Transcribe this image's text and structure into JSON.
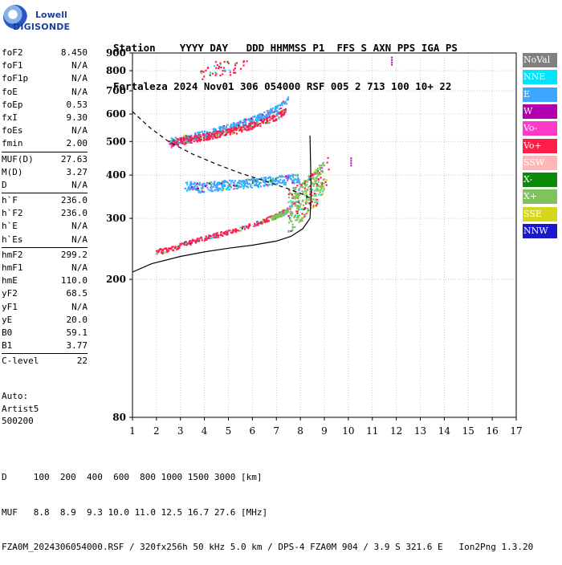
{
  "logo": {
    "line1": "Lowell",
    "line2": "DIGISONDE"
  },
  "header": {
    "line1": "Station    YYYY DAY   DDD HHMMSS P1  FFS S AXN PPS IGA PS",
    "line2": "Fortaleza 2024 Nov01 306 054000 RSF 005 2 713 100 10+ 22"
  },
  "params": [
    [
      {
        "label": "foF2",
        "value": "8.450"
      },
      {
        "label": "foF1",
        "value": "N/A"
      },
      {
        "label": "foF1p",
        "value": "N/A"
      },
      {
        "label": "foE",
        "value": "N/A"
      },
      {
        "label": "foEp",
        "value": "0.53"
      },
      {
        "label": "fxI",
        "value": "9.30"
      },
      {
        "label": "foEs",
        "value": "N/A"
      },
      {
        "label": "fmin",
        "value": "2.00"
      }
    ],
    [
      {
        "label": "MUF(D)",
        "value": "27.63"
      },
      {
        "label": "M(D)",
        "value": "3.27"
      },
      {
        "label": "D",
        "value": "N/A"
      }
    ],
    [
      {
        "label": "h`F",
        "value": "236.0"
      },
      {
        "label": "h`F2",
        "value": "236.0"
      },
      {
        "label": "h`E",
        "value": "N/A"
      },
      {
        "label": "h`Es",
        "value": "N/A"
      }
    ],
    [
      {
        "label": "hmF2",
        "value": "299.2"
      },
      {
        "label": "hmF1",
        "value": "N/A"
      },
      {
        "label": "hmE",
        "value": "110.0"
      },
      {
        "label": "yF2",
        "value": "68.5"
      },
      {
        "label": "yF1",
        "value": "N/A"
      },
      {
        "label": "yE",
        "value": "20.0"
      },
      {
        "label": "B0",
        "value": "59.1"
      },
      {
        "label": "B1",
        "value": "3.77"
      }
    ],
    [
      {
        "label": "C-level",
        "value": "22"
      }
    ]
  ],
  "auto": {
    "line1": "Auto:",
    "line2": "Artist5",
    "line3": "500200"
  },
  "footer": {
    "line1": "D     100  200  400  600  800 1000 1500 3000 [km]",
    "line2": "MUF   8.8  8.9  9.3 10.0 11.0 12.5 16.7 27.6 [MHz]",
    "line3": "FZA0M_2024306054000.RSF / 320fx256h 50 kHz 5.0 km / DPS-4 FZA0M 904 / 3.9 S 321.6 E   Ion2Png 1.3.20"
  },
  "legend": [
    {
      "label": "NoVal",
      "color": "#808080"
    },
    {
      "label": "NNE",
      "color": "#00e5ff"
    },
    {
      "label": "E",
      "color": "#3ea6ff"
    },
    {
      "label": "W",
      "color": "#b000b0"
    },
    {
      "label": "Vo-",
      "color": "#ff39c8"
    },
    {
      "label": "Vo+",
      "color": "#ff1e4a"
    },
    {
      "label": "SSW",
      "color": "#ffb6b6"
    },
    {
      "label": "X-",
      "color": "#0a8a0a"
    },
    {
      "label": "X+",
      "color": "#7fc45a"
    },
    {
      "label": "SSE",
      "color": "#d6d61a"
    },
    {
      "label": "NNW",
      "color": "#1a1acc"
    }
  ],
  "chart_data": {
    "type": "scatter",
    "title": "",
    "xlabel": "",
    "ylabel": "",
    "xlim": [
      1,
      17
    ],
    "ylim": [
      80,
      900
    ],
    "y_scale": "log",
    "x_ticks": [
      1,
      2,
      3,
      4,
      5,
      6,
      7,
      8,
      9,
      10,
      11,
      12,
      13,
      14,
      15,
      16,
      17
    ],
    "y_ticks": [
      80,
      200,
      300,
      400,
      500,
      600,
      700,
      800,
      900
    ],
    "grid": true,
    "legend_position": "right",
    "traces": [
      {
        "name": "Vo+",
        "mode": "F-trace O low",
        "x": [
          2.0,
          2.5,
          3.0,
          3.5,
          4.0,
          4.5,
          5.0,
          5.5,
          6.0,
          6.5,
          7.0,
          7.5,
          8.0,
          8.4,
          8.8,
          9.2
        ],
        "y": [
          240,
          243,
          250,
          257,
          262,
          268,
          274,
          280,
          287,
          295,
          305,
          318,
          335,
          355,
          375,
          410
        ]
      },
      {
        "name": "X+",
        "mode": "F-trace X low",
        "x": [
          6.8,
          7.3,
          7.8,
          8.2,
          8.6,
          9.0
        ],
        "y": [
          300,
          310,
          325,
          345,
          370,
          395
        ]
      },
      {
        "name": "E",
        "mode": "oblique 370 km",
        "x": [
          3.2,
          3.8,
          4.5,
          5.2,
          6.0,
          6.8,
          7.5,
          8.0
        ],
        "y": [
          372,
          368,
          372,
          375,
          380,
          384,
          388,
          392
        ]
      },
      {
        "name": "E",
        "mode": "F-trace 2nd upper",
        "x": [
          2.6,
          3.0,
          3.5,
          4.0,
          4.5,
          5.0,
          5.5,
          6.0,
          6.5,
          7.0,
          7.5
        ],
        "y": [
          500,
          505,
          515,
          525,
          535,
          548,
          562,
          578,
          595,
          620,
          660
        ]
      },
      {
        "name": "Vo+",
        "mode": "2nd hop",
        "x": [
          2.5,
          3.0,
          3.5,
          4.0,
          4.5,
          5.0,
          5.5,
          6.0,
          6.5,
          7.0,
          7.4
        ],
        "y": [
          490,
          500,
          508,
          516,
          524,
          532,
          542,
          556,
          570,
          588,
          610
        ]
      },
      {
        "name": "Vo+",
        "mode": "3rd hop",
        "x": [
          3.8,
          4.0,
          4.2,
          5.4,
          5.8
        ],
        "y": [
          760,
          790,
          810,
          820,
          850
        ]
      },
      {
        "name": "W",
        "mode": "scattered",
        "x": [
          11.8,
          10.1
        ],
        "y": [
          850,
          435
        ]
      }
    ],
    "profile": {
      "name": "electron density profile",
      "x": [
        1.0,
        1.8,
        3.0,
        4.0,
        5.0,
        6.0,
        7.0,
        7.6,
        8.1,
        8.4,
        8.45,
        8.4
      ],
      "y": [
        210,
        222,
        233,
        240,
        246,
        251,
        258,
        266,
        280,
        300,
        350,
        520
      ]
    },
    "muf_curve": {
      "name": "MUF curve",
      "x": [
        1.0,
        1.7,
        2.5,
        3.5,
        4.5,
        5.5,
        6.5,
        7.5,
        8.2,
        8.5
      ],
      "y": [
        610,
        550,
        500,
        460,
        430,
        405,
        385,
        365,
        350,
        340
      ]
    }
  }
}
